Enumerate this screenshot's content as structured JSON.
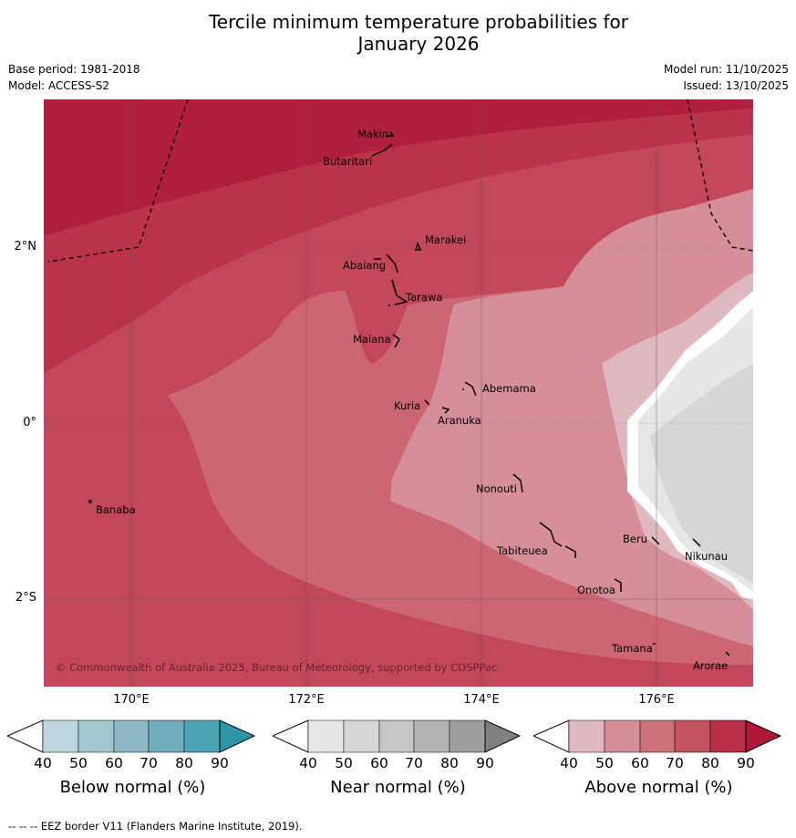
{
  "header": {
    "title_line1": "Tercile minimum temperature probabilities for",
    "title_line2": "January 2026",
    "base_period": "Base period: 1981-2018",
    "model": "Model: ACCESS-S2",
    "model_run": "Model run: 11/10/2025",
    "issued": "Issued: 13/10/2025"
  },
  "map": {
    "y_labels": [
      "2°N",
      "0°",
      "2°S"
    ],
    "x_labels": [
      "170°E",
      "172°E",
      "174°E",
      "176°E"
    ],
    "places": [
      "Makin",
      "Butaritari",
      "Marakei",
      "Abaiang",
      "Tarawa",
      "Maiana",
      "Abemama",
      "Kuria",
      "Aranuka",
      "Nonouti",
      "Banaba",
      "Beru",
      "Tabiteuea",
      "Nikunau",
      "Onotoa",
      "Tamana",
      "Arorae"
    ],
    "copyright": "© Commonwealth of Australia 2025, Bureau of Meteorology, supported by COSPPac"
  },
  "colorbars": [
    {
      "label": "Below normal (%)",
      "ticks": [
        "40",
        "50",
        "60",
        "70",
        "80",
        "90"
      ],
      "colors": [
        "#bcd6de",
        "#a4c6cf",
        "#8cb8c4",
        "#6fadbd",
        "#4aa4b3",
        "#2d96a8"
      ]
    },
    {
      "label": "Near normal (%)",
      "ticks": [
        "40",
        "50",
        "60",
        "70",
        "80",
        "90"
      ],
      "colors": [
        "#e6e6e6",
        "#d6d6d6",
        "#c6c6c6",
        "#b3b3b3",
        "#9e9e9e",
        "#808080"
      ]
    },
    {
      "label": "Above normal (%)",
      "ticks": [
        "40",
        "50",
        "60",
        "70",
        "80",
        "90"
      ],
      "colors": [
        "#e0b8bf",
        "#d68f98",
        "#cc7079",
        "#c4535f",
        "#b82e45",
        "#b0183a"
      ]
    }
  ],
  "footer": "--  --  -- EEZ border V11 (Flanders Marine Institute, 2019)."
}
